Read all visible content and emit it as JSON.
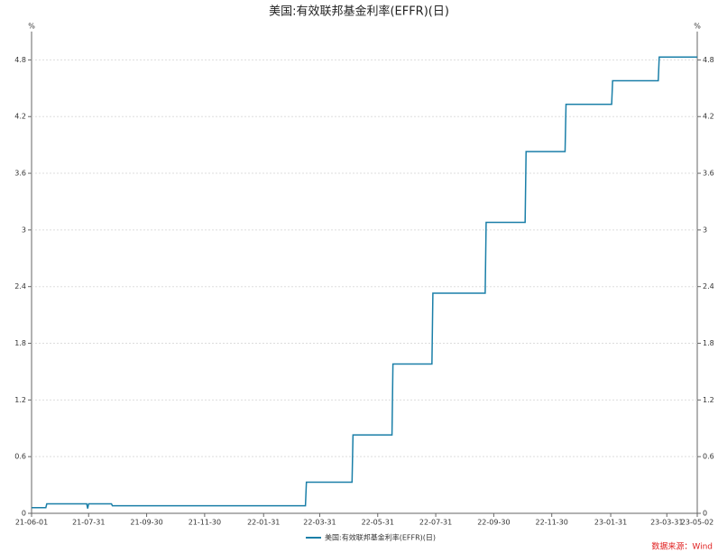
{
  "chart_data": {
    "type": "line",
    "title": "美国:有效联邦基金利率(EFFR)(日)",
    "y_unit": "%",
    "source": "数据来源：Wind",
    "x": [
      "21-06-01",
      "21-06-16",
      "21-06-17",
      "21-07-29",
      "21-07-30",
      "21-07-31",
      "21-08-24",
      "21-08-25",
      "22-03-16",
      "22-03-17",
      "22-05-04",
      "22-05-05",
      "22-06-15",
      "22-06-16",
      "22-07-27",
      "22-07-28",
      "22-09-21",
      "22-09-22",
      "22-11-02",
      "22-11-03",
      "22-12-14",
      "22-12-15",
      "23-02-01",
      "23-02-02",
      "23-03-22",
      "23-03-23",
      "23-05-02"
    ],
    "series": [
      {
        "name": "美国:有效联邦基金利率(EFFR)(日)",
        "color": "#1a7fa8",
        "values": [
          0.06,
          0.06,
          0.1,
          0.1,
          0.05,
          0.1,
          0.1,
          0.08,
          0.08,
          0.33,
          0.33,
          0.83,
          0.83,
          1.58,
          1.58,
          2.33,
          2.33,
          3.08,
          3.08,
          3.83,
          3.83,
          4.33,
          4.33,
          4.58,
          4.58,
          4.83,
          4.83
        ]
      }
    ],
    "xlim": [
      "21-06-01",
      "23-05-02"
    ],
    "xticks": [
      "21-06-01",
      "21-07-31",
      "21-09-30",
      "21-11-30",
      "22-01-31",
      "22-03-31",
      "22-05-31",
      "22-07-31",
      "22-09-30",
      "22-11-30",
      "23-01-31",
      "23-03-31",
      "23-05-02"
    ],
    "ylim": [
      0,
      5.1
    ],
    "yticks": [
      0,
      0.6,
      1.2,
      1.8,
      2.4,
      3,
      3.6,
      4.2,
      4.8
    ],
    "grid": true
  }
}
